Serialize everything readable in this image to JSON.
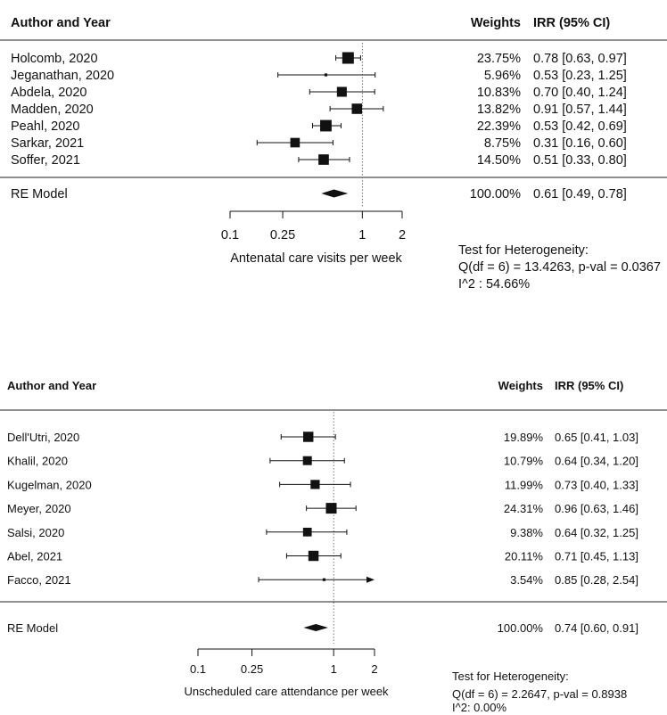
{
  "chart_data": [
    {
      "type": "forest",
      "header": {
        "study_col": "Author and Year",
        "weights_col": "Weights",
        "effect_col": "IRR (95% CI)"
      },
      "x_scale": "log",
      "xlim": [
        0.1,
        2
      ],
      "ticks": [
        {
          "value": 0.1,
          "label": "0.1"
        },
        {
          "value": 0.25,
          "label": "0.25"
        },
        {
          "value": 1,
          "label": "1"
        },
        {
          "value": 2,
          "label": "2"
        }
      ],
      "reference_line": 1,
      "xlabel": "Antenatal care visits per week",
      "studies": [
        {
          "label": "Holcomb, 2020",
          "estimate": 0.78,
          "lower": 0.63,
          "upper": 0.97,
          "weight": 23.75,
          "weight_text": "23.75%",
          "ci_text": "0.78 [0.63, 0.97]"
        },
        {
          "label": "Jeganathan, 2020",
          "estimate": 0.53,
          "lower": 0.23,
          "upper": 1.25,
          "weight": 5.96,
          "weight_text": "5.96%",
          "ci_text": "0.53 [0.23, 1.25]"
        },
        {
          "label": "Abdela, 2020",
          "estimate": 0.7,
          "lower": 0.4,
          "upper": 1.24,
          "weight": 10.83,
          "weight_text": "10.83%",
          "ci_text": "0.70 [0.40, 1.24]"
        },
        {
          "label": "Madden, 2020",
          "estimate": 0.91,
          "lower": 0.57,
          "upper": 1.44,
          "weight": 13.82,
          "weight_text": "13.82%",
          "ci_text": "0.91 [0.57, 1.44]"
        },
        {
          "label": "Peahl, 2020",
          "estimate": 0.53,
          "lower": 0.42,
          "upper": 0.69,
          "weight": 22.39,
          "weight_text": "22.39%",
          "ci_text": "0.53 [0.42, 0.69]"
        },
        {
          "label": "Sarkar, 2021",
          "estimate": 0.31,
          "lower": 0.16,
          "upper": 0.6,
          "weight": 8.75,
          "weight_text": "8.75%",
          "ci_text": "0.31 [0.16, 0.60]"
        },
        {
          "label": "Soffer, 2021",
          "estimate": 0.51,
          "lower": 0.33,
          "upper": 0.8,
          "weight": 14.5,
          "weight_text": "14.50%",
          "ci_text": "0.51 [0.33, 0.80]"
        }
      ],
      "summary": {
        "label": "RE Model",
        "estimate": 0.61,
        "lower": 0.49,
        "upper": 0.78,
        "weight_text": "100.00%",
        "ci_text": "0.61 [0.49, 0.78]"
      },
      "heterogeneity": {
        "title": "Test for Heterogeneity:",
        "q_line": "Q(df = 6) = 13.4263, p-val = 0.0367",
        "i2_line": "I^2 : 54.66%"
      }
    },
    {
      "type": "forest",
      "header": {
        "study_col": "Author and Year",
        "weights_col": "Weights",
        "effect_col": "IRR (95% CI)"
      },
      "x_scale": "log",
      "xlim": [
        0.1,
        2
      ],
      "ticks": [
        {
          "value": 0.1,
          "label": "0.1"
        },
        {
          "value": 0.25,
          "label": "0.25"
        },
        {
          "value": 1,
          "label": "1"
        },
        {
          "value": 2,
          "label": "2"
        }
      ],
      "reference_line": 1,
      "xlabel": "Unscheduled care attendance per week",
      "studies": [
        {
          "label": "Dell'Utri, 2020",
          "estimate": 0.65,
          "lower": 0.41,
          "upper": 1.03,
          "weight": 19.89,
          "weight_text": "19.89%",
          "ci_text": "0.65 [0.41, 1.03]"
        },
        {
          "label": "Khalil, 2020",
          "estimate": 0.64,
          "lower": 0.34,
          "upper": 1.2,
          "weight": 10.79,
          "weight_text": "10.79%",
          "ci_text": "0.64 [0.34, 1.20]"
        },
        {
          "label": "Kugelman, 2020",
          "estimate": 0.73,
          "lower": 0.4,
          "upper": 1.33,
          "weight": 11.99,
          "weight_text": "11.99%",
          "ci_text": "0.73 [0.40, 1.33]"
        },
        {
          "label": "Meyer, 2020",
          "estimate": 0.96,
          "lower": 0.63,
          "upper": 1.46,
          "weight": 24.31,
          "weight_text": "24.31%",
          "ci_text": "0.96 [0.63, 1.46]"
        },
        {
          "label": "Salsi, 2020",
          "estimate": 0.64,
          "lower": 0.32,
          "upper": 1.25,
          "weight": 9.38,
          "weight_text": "9.38%",
          "ci_text": "0.64 [0.32, 1.25]"
        },
        {
          "label": "Abel, 2021",
          "estimate": 0.71,
          "lower": 0.45,
          "upper": 1.13,
          "weight": 20.11,
          "weight_text": "20.11%",
          "ci_text": "0.71 [0.45, 1.13]"
        },
        {
          "label": "Facco, 2021",
          "estimate": 0.85,
          "lower": 0.28,
          "upper": 2.54,
          "weight": 3.54,
          "weight_text": "3.54%",
          "ci_text": "0.85 [0.28, 2.54]",
          "clipped_upper": true
        }
      ],
      "summary": {
        "label": "RE Model",
        "estimate": 0.74,
        "lower": 0.6,
        "upper": 0.91,
        "weight_text": "100.00%",
        "ci_text": "0.74 [0.60, 0.91]"
      },
      "heterogeneity": {
        "title": "Test for Heterogeneity:",
        "q_line": "Q(df = 6) = 2.2647, p-val = 0.8938",
        "i2_line": "I^2:  0.00%"
      }
    }
  ]
}
